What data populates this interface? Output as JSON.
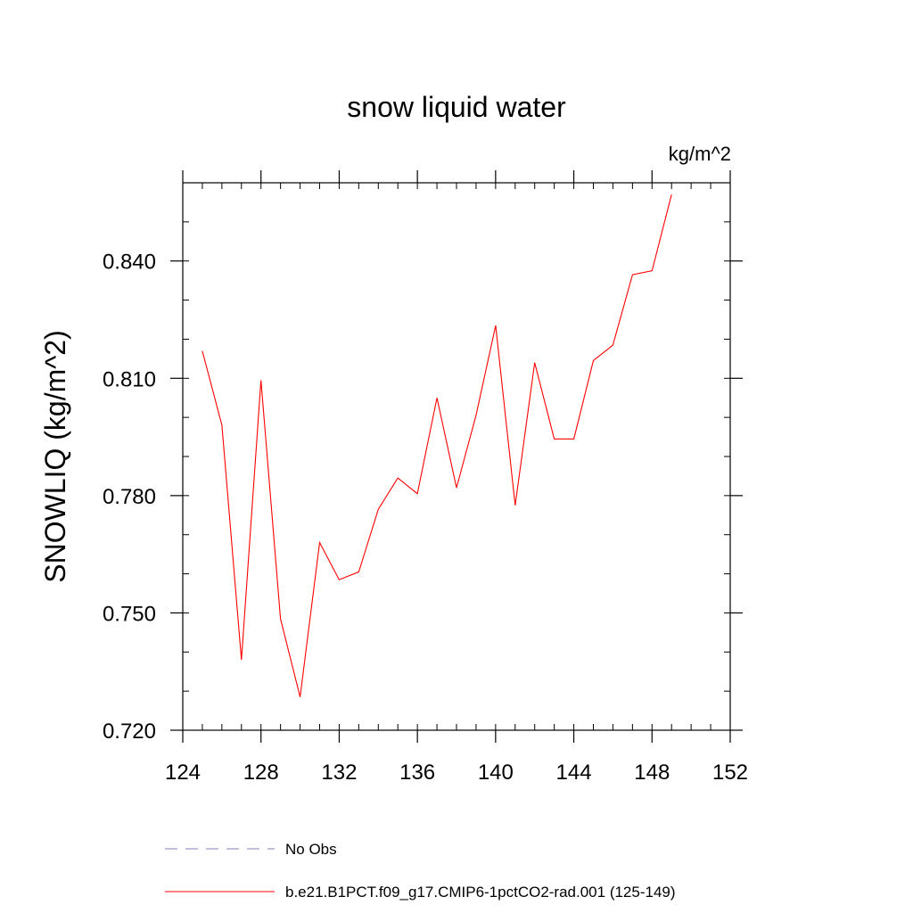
{
  "chart_data": {
    "type": "line",
    "title": "snow liquid water",
    "units": "kg/m^2",
    "xlabel": "",
    "ylabel": "SNOWLIQ  (kg/m^2)",
    "xlim": [
      124,
      152
    ],
    "ylim": [
      0.72,
      0.86
    ],
    "xticks": [
      124,
      128,
      132,
      136,
      140,
      144,
      148,
      152
    ],
    "xtick_labels": [
      "124",
      "128",
      "132",
      "136",
      "140",
      "144",
      "148",
      "152"
    ],
    "yticks": [
      0.72,
      0.75,
      0.78,
      0.81,
      0.84
    ],
    "ytick_labels": [
      "0.720",
      "0.750",
      "0.780",
      "0.810",
      "0.840"
    ],
    "x_minor_step": 1,
    "y_minor_step": 0.01,
    "grid": false,
    "legend_position": "bottom",
    "series": [
      {
        "name": "No Obs",
        "color": "#7f7fbf",
        "style": "dashed",
        "x": [],
        "values": []
      },
      {
        "name": "b.e21.B1PCT.f09_g17.CMIP6-1pctCO2-rad.001 (125-149)",
        "color": "#ff0000",
        "style": "solid",
        "x": [
          125,
          126,
          127,
          128,
          129,
          130,
          131,
          132,
          133,
          134,
          135,
          136,
          137,
          138,
          139,
          140,
          141,
          142,
          143,
          144,
          145,
          146,
          147,
          148,
          149
        ],
        "values": [
          0.817,
          0.798,
          0.738,
          0.8095,
          0.7485,
          0.7285,
          0.768,
          0.7585,
          0.7605,
          0.7765,
          0.7845,
          0.7805,
          0.805,
          0.782,
          0.8005,
          0.8235,
          0.7775,
          0.814,
          0.7945,
          0.7945,
          0.8145,
          0.8185,
          0.8365,
          0.8375,
          0.857
        ]
      }
    ]
  }
}
